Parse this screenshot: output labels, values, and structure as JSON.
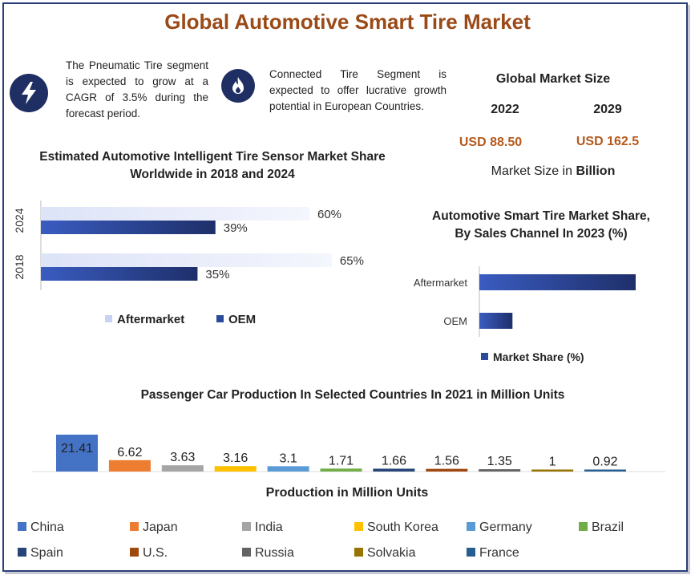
{
  "title": "Global Automotive Smart Tire Market",
  "notes": [
    {
      "icon": "lightning-bolt-icon",
      "text": "The Pneumatic Tire segment is expected to grow at a CAGR of 3.5% during the forecast period."
    },
    {
      "icon": "flame-icon",
      "text": "Connected Tire Segment is expected to offer lucrative growth potential in European Countries."
    }
  ],
  "market_size": {
    "heading": "Global Market Size",
    "years": [
      "2022",
      "2029"
    ],
    "values": [
      "USD 88.50",
      "USD 162.5"
    ],
    "unit_prefix": "Market Size in ",
    "unit_bold": "Billion"
  },
  "colors": {
    "title": "#9a4a17",
    "accent_value": "#b5591c",
    "dark_blue": "#2a4a9a",
    "light_blue": "#c8d2f5",
    "frame": "#2c3e78"
  },
  "chart_data": [
    {
      "type": "bar",
      "orientation": "horizontal",
      "title": "Estimated Automotive Intelligent Tire Sensor Market Share Worldwide in 2018 and 2024",
      "categories": [
        "2024",
        "2018"
      ],
      "series": [
        {
          "name": "Aftermarket",
          "values": [
            60,
            65
          ],
          "labels": [
            "60%",
            "65%"
          ],
          "color": "#c8d2f5"
        },
        {
          "name": "OEM",
          "values": [
            39,
            35
          ],
          "labels": [
            "39%",
            "35%"
          ],
          "color": "#2a4a9a"
        }
      ],
      "xlim": [
        0,
        100
      ],
      "legend": "bottom"
    },
    {
      "type": "bar",
      "orientation": "horizontal",
      "title": "Automotive Smart Tire Market Share, By Sales Channel In 2023 (%)",
      "categories": [
        "Aftermarket",
        "OEM"
      ],
      "series": [
        {
          "name": "Market Share (%)",
          "values": [
            85,
            18
          ],
          "color": "#2a4a9a"
        }
      ],
      "legend": "bottom"
    },
    {
      "type": "bar",
      "title": "Passenger Car Production In Selected Countries In 2021 in Million Units",
      "xlabel": "Production in Million Units",
      "categories": [
        "China",
        "Japan",
        "India",
        "South Korea",
        "Germany",
        "Brazil",
        "Spain",
        "U.S.",
        "Russia",
        "Solvakia",
        "France"
      ],
      "values": [
        21.41,
        6.62,
        3.63,
        3.16,
        3.1,
        1.71,
        1.66,
        1.56,
        1.35,
        1,
        0.92
      ],
      "labels": [
        "21.41",
        "6.62",
        "3.63",
        "3.16",
        "3.1",
        "1.71",
        "1.66",
        "1.56",
        "1.35",
        "1",
        "0.92"
      ],
      "colors": [
        "#4472c4",
        "#ed7d31",
        "#a5a5a5",
        "#ffc000",
        "#5b9bd5",
        "#70ad47",
        "#264478",
        "#9e480e",
        "#636363",
        "#997300",
        "#255e91"
      ],
      "legend": "bottom"
    }
  ]
}
